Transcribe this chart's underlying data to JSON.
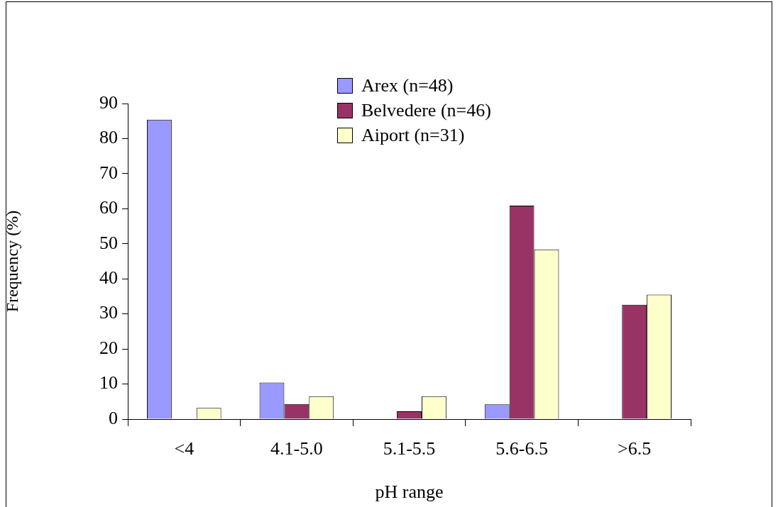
{
  "chart_data": {
    "type": "bar",
    "xlabel": "pH range",
    "ylabel": "Frequency (%)",
    "categories": [
      "<4",
      "4.1-5.0",
      "5.1-5.5",
      "5.6-6.5",
      ">6.5"
    ],
    "series": [
      {
        "name": "Arex (n=48)",
        "color": "#9999ff",
        "values": [
          85.4,
          10.4,
          0,
          4.2,
          0
        ]
      },
      {
        "name": "Belvedere (n=46)",
        "color": "#993366",
        "values": [
          0,
          4.3,
          2.2,
          60.9,
          32.6
        ]
      },
      {
        "name": "Aiport (n=31)",
        "color": "#ffffcc",
        "values": [
          3.2,
          6.5,
          6.5,
          48.4,
          35.5
        ]
      }
    ],
    "ylim": [
      0,
      90
    ],
    "yticks": [
      0,
      10,
      20,
      30,
      40,
      50,
      60,
      70,
      80,
      90
    ],
    "grid": false,
    "legend": "top right"
  }
}
